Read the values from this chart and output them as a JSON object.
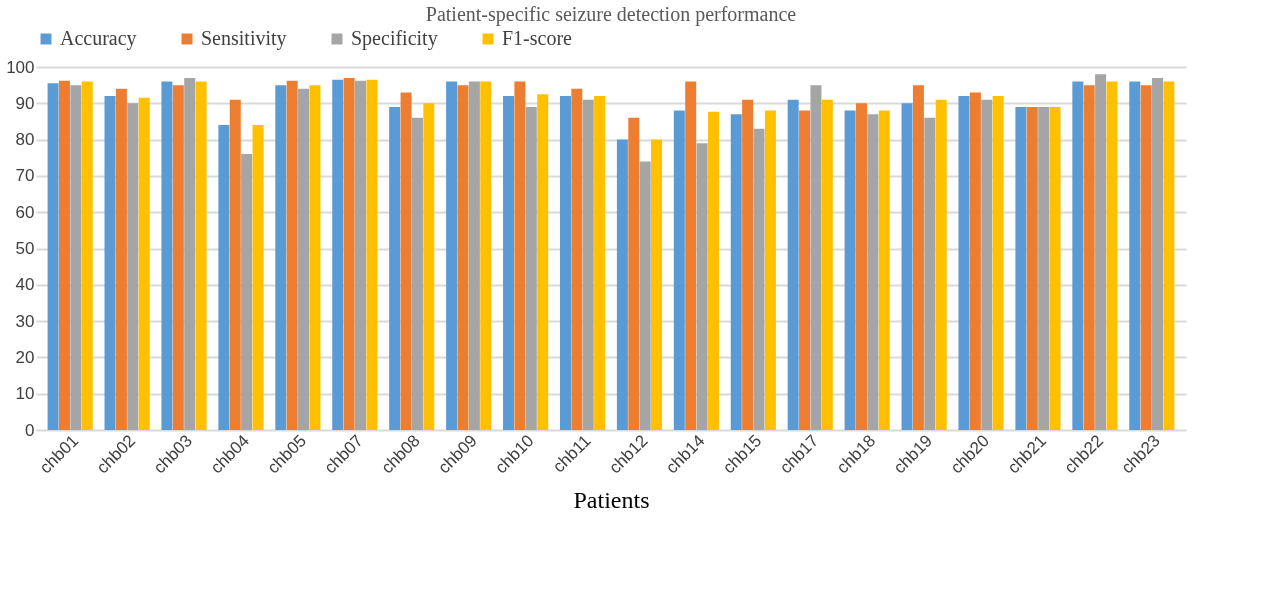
{
  "chart_data": {
    "type": "bar",
    "title": "Patient-specific seizure detection performance",
    "xlabel": "Patients",
    "categories": [
      "chb01",
      "chb02",
      "chb03",
      "chb04",
      "chb05",
      "chb07",
      "chb08",
      "chb09",
      "chb10",
      "chb11",
      "chb12",
      "chb14",
      "chb15",
      "chb17",
      "chb18",
      "chb19",
      "chb20",
      "chb21",
      "chb22",
      "chb23"
    ],
    "series": [
      {
        "name": "Accuracy",
        "color": "#5b9bd5",
        "values": [
          95.5,
          92,
          96,
          84,
          95,
          96.5,
          89,
          96,
          92,
          92,
          80,
          88,
          87,
          91,
          88,
          90,
          92,
          89,
          96,
          96
        ]
      },
      {
        "name": "Sensitivity",
        "color": "#ed7d31",
        "values": [
          96.2,
          94,
          95,
          91,
          96.2,
          97,
          93,
          95,
          96,
          94,
          86,
          96,
          91,
          88,
          90,
          95,
          93,
          89,
          95,
          95
        ]
      },
      {
        "name": "Specificity",
        "color": "#a5a5a5",
        "values": [
          95,
          90,
          97,
          76,
          94,
          96.2,
          86,
          96,
          89,
          91,
          74,
          79,
          83,
          95,
          87,
          86,
          91,
          89,
          98,
          97
        ]
      },
      {
        "name": "F1-score",
        "color": "#ffc000",
        "values": [
          96,
          91.5,
          96,
          84,
          95,
          96.5,
          90,
          96,
          92.5,
          92,
          80,
          87.7,
          88,
          91,
          88,
          91,
          92,
          89,
          96,
          96
        ]
      }
    ],
    "ylim": [
      0,
      100
    ],
    "yticks": [
      0,
      10,
      20,
      30,
      40,
      50,
      60,
      70,
      80,
      90,
      100
    ],
    "grid": "y",
    "legend": "top"
  }
}
